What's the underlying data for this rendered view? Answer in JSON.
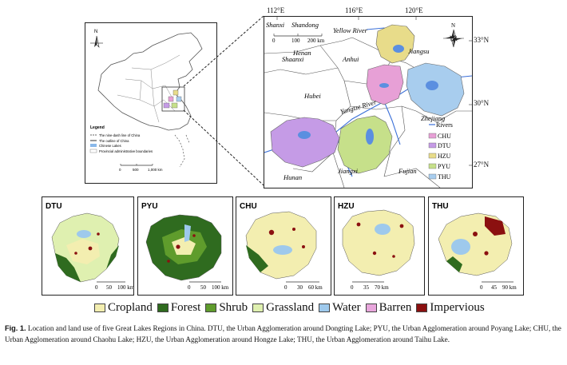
{
  "china_map": {
    "north_label": "N",
    "legend_title": "Legend",
    "legend_items": [
      "The nine-dash line of China",
      "The outline of China",
      "Chinese Lakes",
      "Provincial administrative boundaries"
    ],
    "scale_labels": [
      "0",
      "500",
      "1,000 km"
    ]
  },
  "regional_map": {
    "longitudes": [
      "112°E",
      "116°E",
      "120°E"
    ],
    "latitudes": [
      "33°N",
      "30°N",
      "27°N"
    ],
    "north_label": "N",
    "scale_labels": [
      "0",
      "100",
      "200 km"
    ],
    "provinces": [
      "Shanxi",
      "Shandong",
      "Yellow River",
      "Shaanxi",
      "Henan",
      "Anhui",
      "Jiangsu",
      "Hubei",
      "Yangtze River",
      "Zhejiang",
      "Hunan",
      "Jiangxi",
      "Fujian"
    ],
    "legend": [
      {
        "label": "Rivers",
        "color": "#3a6fd8"
      },
      {
        "label": "CHU",
        "color": "#e7a0d6"
      },
      {
        "label": "DTU",
        "color": "#c59be6"
      },
      {
        "label": "HZU",
        "color": "#e8dc8a"
      },
      {
        "label": "PYU",
        "color": "#c6e08a"
      },
      {
        "label": "THU",
        "color": "#a8cdee"
      }
    ]
  },
  "landuse_panels": [
    {
      "code": "DTU",
      "scale": [
        "0",
        "50",
        "100 km"
      ]
    },
    {
      "code": "PYU",
      "scale": [
        "0",
        "50",
        "100 km"
      ]
    },
    {
      "code": "CHU",
      "scale": [
        "0",
        "30",
        "60 km"
      ]
    },
    {
      "code": "HZU",
      "scale": [
        "0",
        "35",
        "70 km"
      ]
    },
    {
      "code": "THU",
      "scale": [
        "0",
        "45",
        "90 km"
      ]
    }
  ],
  "landuse_legend": [
    {
      "label": "Cropland",
      "color": "#f3eeb0"
    },
    {
      "label": "Forest",
      "color": "#2f6b1f"
    },
    {
      "label": "Shrub",
      "color": "#5f9c2c"
    },
    {
      "label": "Grassland",
      "color": "#dff0b0"
    },
    {
      "label": "Water",
      "color": "#9ec9ec"
    },
    {
      "label": "Barren",
      "color": "#e8a6dc"
    },
    {
      "label": "Impervious",
      "color": "#8b1010"
    }
  ],
  "caption": {
    "label": "Fig. 1.",
    "text": "Location and land use of five Great Lakes Regions in China. DTU, the Urban Agglomeration around Dongting Lake; PYU, the Urban Agglomeration around Poyang Lake; CHU, the Urban Agglomeration around Chaohu Lake; HZU, the Urban Agglomeration around Hongze Lake; THU, the Urban Agglomeration around Taihu Lake."
  }
}
